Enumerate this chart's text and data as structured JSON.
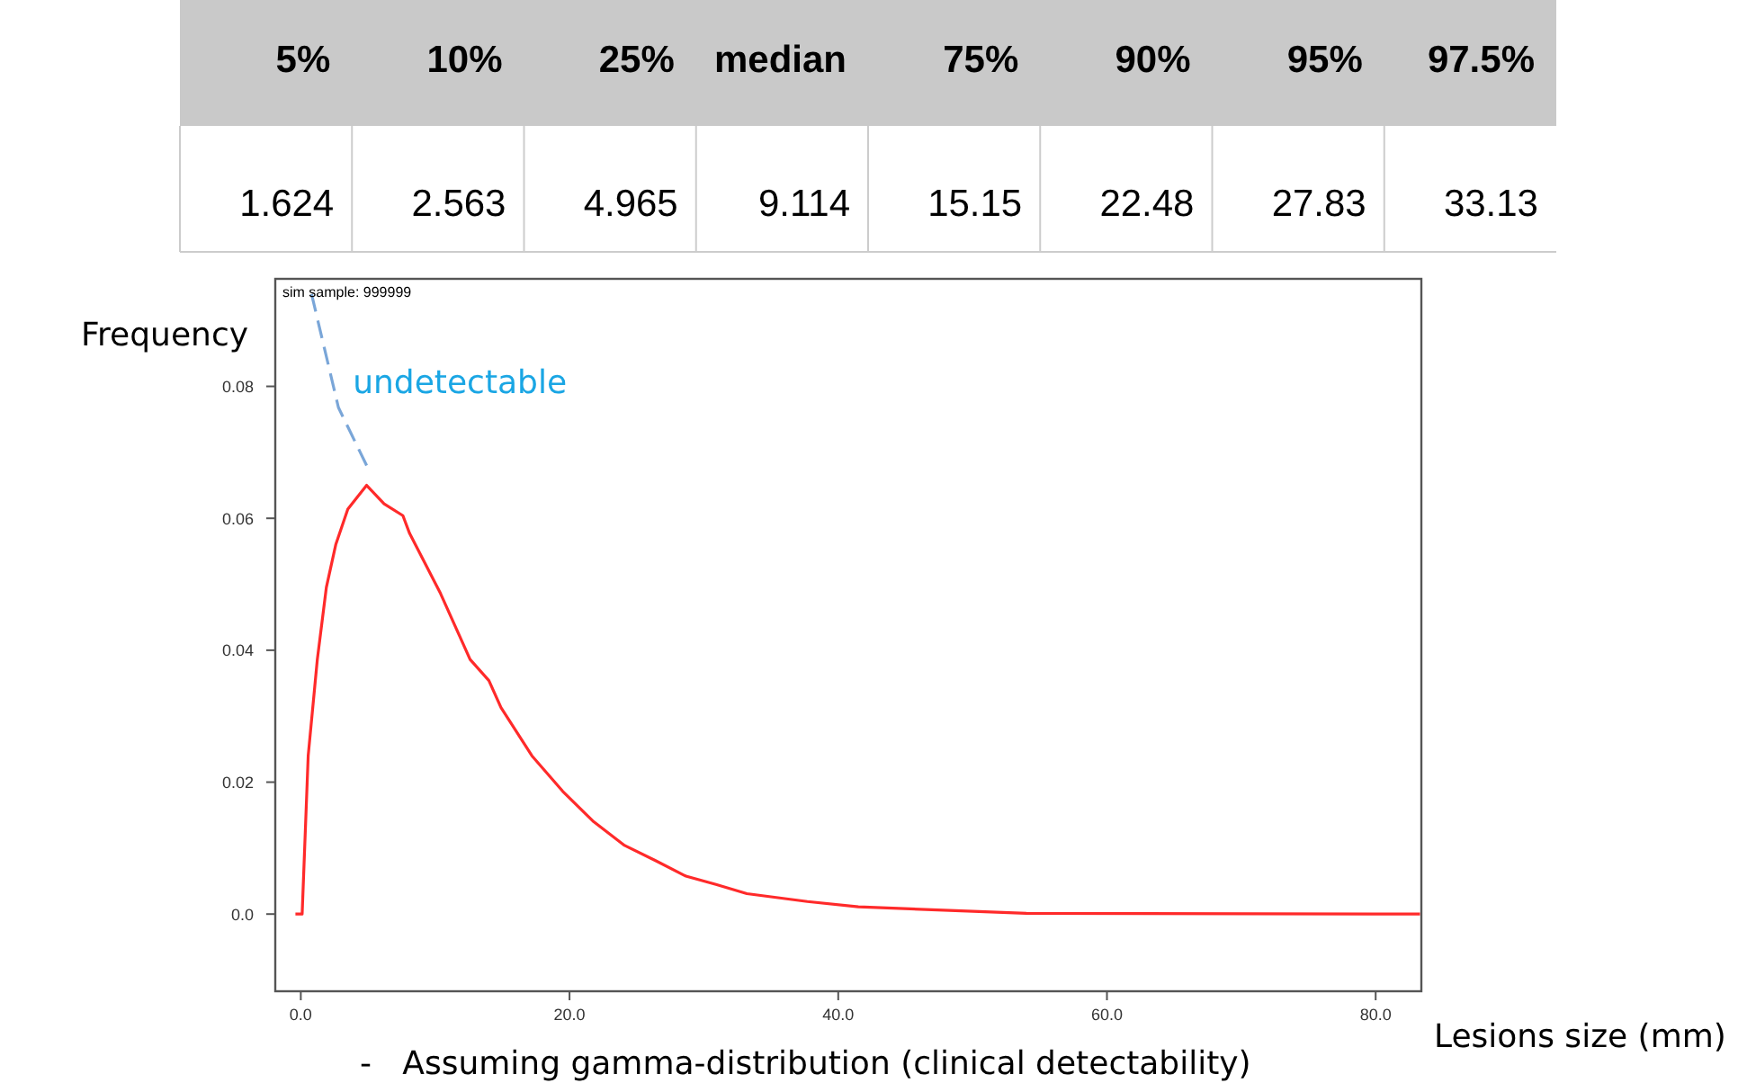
{
  "chart_data": [
    {
      "type": "other",
      "categories": [
        "5%",
        "10%",
        "25%",
        "median",
        "75%",
        "90%",
        "95%",
        "97.5%"
      ],
      "values": [
        1.624,
        2.563,
        4.965,
        9.114,
        15.15,
        22.48,
        27.83,
        33.13
      ],
      "data_labels": true
    },
    {
      "type": "line",
      "ylabel": "Frequency",
      "xlabel": "Lesions size (mm)",
      "annotations": [
        "sim sample: 999999",
        {
          "text": "undetectable",
          "x": 2.8,
          "y": 0.0768
        },
        "-   Assuming gamma-distribution (clinical detectability)"
      ],
      "series": [
        {
          "color": "#ff2a2a",
          "line_style": "solid",
          "x": [
            -0.4,
            0.1,
            0.55,
            1.23,
            1.9,
            2.6,
            3.5,
            4.9,
            6.2,
            7.6,
            8.1,
            10.4,
            12.6,
            14.0,
            14.9,
            17.2,
            19.5,
            21.8,
            24.1,
            26.4,
            28.6,
            30.9,
            33.2,
            37.7,
            41.5,
            54,
            83.3
          ],
          "values": [
            0,
            0,
            0.024,
            0.0386,
            0.0495,
            0.056,
            0.0614,
            0.065,
            0.0622,
            0.0604,
            0.0577,
            0.0486,
            0.0386,
            0.0354,
            0.0313,
            0.024,
            0.0186,
            0.014,
            0.0104,
            0.0081,
            0.0058,
            0.0045,
            0.0031,
            0.0019,
            0.0011,
            0.0001,
            0
          ]
        },
        {
          "color": "#7aa6d8",
          "line_style": "dashed",
          "x": [
            0.8,
            2.8,
            4.9
          ],
          "values": [
            0.094,
            0.0768,
            0.068
          ]
        }
      ],
      "xlim": [
        -1.9,
        83.4
      ],
      "ylim": [
        -0.0117,
        0.0963
      ],
      "xticks": [
        {
          "value": 0,
          "label": "0.0"
        },
        {
          "value": 20,
          "label": "20.0"
        },
        {
          "value": 40,
          "label": "40.0"
        },
        {
          "value": 60,
          "label": "60.0"
        },
        {
          "value": 80,
          "label": "80.0"
        }
      ],
      "yticks": [
        {
          "value": 0,
          "label": "0.0"
        },
        0.02,
        0.04,
        0.06,
        0.08
      ],
      "grid": false,
      "marker": "none"
    }
  ]
}
